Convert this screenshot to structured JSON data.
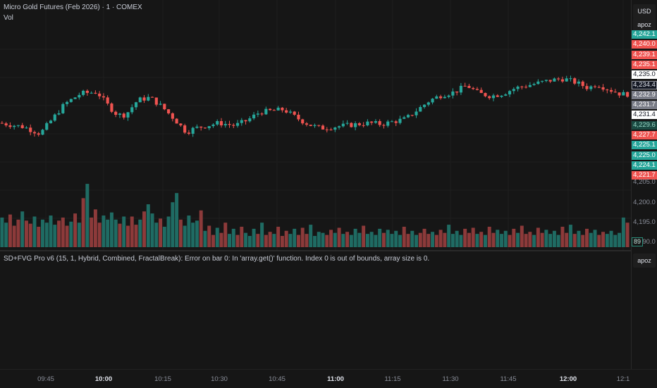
{
  "chart_header": {
    "title": "Micro Gold Futures (Feb 2026) · 1 · COMEX",
    "volume_label": "Vol"
  },
  "indicator": {
    "status": "SD+FVG Pro v6 (15, 1, Hybrid, Combined, FractalBreak): Error on bar 0: In 'array.get()' function. Index 0 is out of bounds, array size is 0."
  },
  "axis_controls": {
    "currency": "USD",
    "scale_mode": "apoz",
    "lower_scale_mode": "apoz"
  },
  "price_labels": [
    {
      "text": "4,242.1",
      "value": 4242.1,
      "bg": "#26a69a"
    },
    {
      "text": "4,240.0",
      "value": 4240.0,
      "bg": "#ef5350"
    },
    {
      "text": "4,239.1",
      "value": 4239.1,
      "bg": "#ef5350"
    },
    {
      "text": "4,235.1",
      "value": 4235.1,
      "bg": "#ef5350"
    },
    {
      "text": "4,235.0",
      "value": 4235.0,
      "bg": "#ffffff",
      "fg": "#131722"
    },
    {
      "text": "4,234.4",
      "value": 4234.4,
      "bg": "#131722",
      "fg": "#e0e3eb",
      "border": "#9598a1"
    },
    {
      "text": "4,232.9",
      "value": 4232.9,
      "bg": "#787b86"
    },
    {
      "text": "4,231.7",
      "value": 4231.7,
      "bg": "#787b86"
    },
    {
      "text": "4,231.4",
      "value": 4231.4,
      "bg": "#ffffff",
      "fg": "#131722"
    },
    {
      "text": "4,229.6",
      "value": 4229.6,
      "bg": "#1a4a42",
      "fg": "#9ad6c6"
    },
    {
      "text": "4,227.7",
      "value": 4227.7,
      "bg": "#ef5350"
    },
    {
      "text": "4,225.1",
      "value": 4225.1,
      "bg": "#26a69a"
    },
    {
      "text": "4,225.0",
      "value": 4225.0,
      "bg": "#26a69a"
    },
    {
      "text": "4,224.1",
      "value": 4224.1,
      "bg": "#26a69a"
    },
    {
      "text": "4,221.7",
      "value": 4221.7,
      "bg": "#ef5350"
    }
  ],
  "plain_price_labels": [
    "4,205.0",
    "4,200.0",
    "4,195.0",
    "4,190.0"
  ],
  "volume_last": "89",
  "colors": {
    "up": "#26a69a",
    "down": "#ef5350",
    "vol_up": "#1f6b63",
    "vol_down": "#8c3a3a",
    "grid": "#1e1e1e"
  },
  "chart_data": {
    "type": "candlestick",
    "x_ticks": [
      {
        "label": "09:45",
        "bold": false
      },
      {
        "label": "10:00",
        "bold": true
      },
      {
        "label": "10:15",
        "bold": false
      },
      {
        "label": "10:30",
        "bold": false
      },
      {
        "label": "10:45",
        "bold": false
      },
      {
        "label": "11:00",
        "bold": true
      },
      {
        "label": "11:15",
        "bold": false
      },
      {
        "label": "11:30",
        "bold": false
      },
      {
        "label": "11:45",
        "bold": false
      },
      {
        "label": "12:00",
        "bold": true
      },
      {
        "label": "12:1",
        "bold": false
      }
    ],
    "price_path": [
      [
        0,
        4229.0
      ],
      [
        6,
        4228.4
      ],
      [
        10,
        4227.4
      ],
      [
        13,
        4229.6
      ],
      [
        16,
        4231.8
      ],
      [
        20,
        4233.4
      ],
      [
        24,
        4233.6
      ],
      [
        27,
        4231.4
      ],
      [
        29,
        4230.2
      ],
      [
        31,
        4230.2
      ],
      [
        34,
        4232.4
      ],
      [
        37,
        4232.8
      ],
      [
        40,
        4231.4
      ],
      [
        43,
        4229.6
      ],
      [
        46,
        4227.6
      ],
      [
        48,
        4228.2
      ],
      [
        51,
        4228.6
      ],
      [
        54,
        4229.0
      ],
      [
        58,
        4228.6
      ],
      [
        61,
        4229.4
      ],
      [
        64,
        4230.6
      ],
      [
        67,
        4230.8
      ],
      [
        70,
        4231.0
      ],
      [
        73,
        4229.8
      ],
      [
        76,
        4228.8
      ],
      [
        79,
        4228.2
      ],
      [
        82,
        4228.4
      ],
      [
        85,
        4228.6
      ],
      [
        88,
        4228.8
      ],
      [
        91,
        4229.0
      ],
      [
        94,
        4228.8
      ],
      [
        97,
        4229.2
      ],
      [
        100,
        4229.6
      ],
      [
        103,
        4231.0
      ],
      [
        106,
        4232.4
      ],
      [
        109,
        4233.2
      ],
      [
        112,
        4233.6
      ],
      [
        115,
        4234.6
      ],
      [
        118,
        4233.4
      ],
      [
        121,
        4233.0
      ],
      [
        124,
        4233.4
      ],
      [
        127,
        4234.2
      ],
      [
        130,
        4234.6
      ],
      [
        133,
        4235.0
      ],
      [
        136,
        4235.4
      ],
      [
        139,
        4235.6
      ],
      [
        142,
        4235.0
      ],
      [
        145,
        4234.2
      ],
      [
        147,
        4234.8
      ],
      [
        150,
        4234.0
      ],
      [
        153,
        4233.3
      ]
    ],
    "volume_pattern": [
      29,
      24,
      32,
      21,
      27,
      35,
      26,
      23,
      30,
      20,
      27,
      24,
      31,
      22,
      26,
      29,
      21,
      25,
      33,
      24,
      48,
      62,
      29,
      37,
      24,
      31,
      27,
      34,
      27,
      23,
      30,
      21,
      30,
      22,
      27,
      35,
      42,
      33,
      24,
      28,
      20,
      30,
      44,
      53,
      27,
      21,
      31,
      24,
      26,
      36,
      16,
      21,
      12,
      19,
      14,
      24,
      13,
      18,
      12,
      20,
      14,
      11,
      18,
      13,
      24,
      12,
      15,
      13,
      20,
      11,
      16,
      13,
      18,
      12,
      19,
      13,
      22,
      11,
      15,
      14,
      12,
      17,
      14,
      19,
      13,
      15,
      12,
      18,
      14,
      21,
      13,
      15,
      12,
      18,
      14,
      17,
      13,
      16,
      12,
      20,
      13,
      16,
      12,
      14,
      18,
      13,
      15,
      12,
      17,
      14,
      22,
      13,
      16,
      12,
      18,
      14,
      19,
      13,
      15,
      12,
      20,
      14,
      17,
      13,
      16,
      12,
      18,
      14,
      21,
      13,
      15,
      12,
      19,
      14,
      17,
      13,
      16,
      12,
      20,
      14,
      22,
      13,
      16,
      12,
      18,
      14,
      17,
      12,
      15,
      13,
      16,
      12,
      14
    ]
  }
}
